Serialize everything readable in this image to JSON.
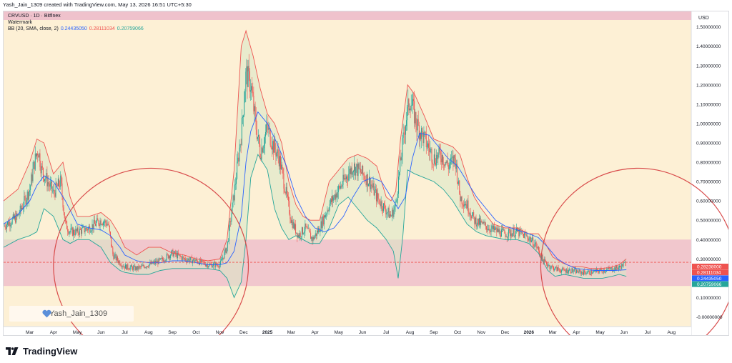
{
  "header": {
    "attribution": "Yash_Jain_1309 created with TradingView.com, May 13, 2026 16:51 UTC+5:30"
  },
  "legend": {
    "symbol": "CRVUSD · 1D · Bitfinex",
    "watermark": "Watermark",
    "bb_label": "BB (20, SMA, close, 2)",
    "bb_basis": "0.24435050",
    "bb_upper": "0.28111034",
    "bb_lower": "0.20759066"
  },
  "colors": {
    "background": "#fdf0d5",
    "zone_fill": "#efc2cc",
    "upper_band": "#ef5350",
    "lower_band": "#26a69a",
    "basis": "#2962ff",
    "band_fill": "#d9e8c7",
    "up_candle": "#26a69a",
    "down_candle": "#ef5350",
    "circle": "#d84a4a"
  },
  "price_axis": {
    "currency": "USD",
    "ticks": [
      "1.50000000",
      "1.40000000",
      "1.30000000",
      "1.20000000",
      "1.10000000",
      "1.00000000",
      "0.90000000",
      "0.80000000",
      "0.70000000",
      "0.60000000",
      "0.50000000",
      "0.40000000",
      "0.30000000",
      "0.10000000",
      "-0.00000000"
    ],
    "tags": [
      {
        "value": "0.28238000",
        "color": "#ef5350"
      },
      {
        "value": "0.28111034",
        "color": "#ef5350"
      },
      {
        "value": "0.24435050",
        "color": "#2962ff"
      },
      {
        "value": "0.20759066",
        "color": "#26a69a"
      }
    ]
  },
  "time_axis": {
    "labels": [
      "Mar",
      "Apr",
      "May",
      "Jun",
      "Jul",
      "Aug",
      "Sep",
      "Oct",
      "Nov",
      "Dec",
      "2025",
      "Mar",
      "Apr",
      "May",
      "Jun",
      "Jul",
      "Aug",
      "Sep",
      "Oct",
      "Nov",
      "Dec",
      "2026",
      "Mar",
      "Apr",
      "May",
      "Jun",
      "Jul",
      "Aug"
    ]
  },
  "watermark_text": "Yash_Jain_1309",
  "footer": {
    "logo_text": "TradingView"
  },
  "chart_data": {
    "type": "line",
    "title": "CRVUSD · 1D · Bitfinex",
    "ylabel": "USD",
    "ylim": [
      -0.05,
      1.58
    ],
    "x_unit": "month index (0 = Mar 2024)",
    "xlim": [
      -1.1,
      28.0
    ],
    "grid": false,
    "zones": [
      {
        "y_from": 0.16,
        "y_to": 0.4
      }
    ],
    "horizontal_line": 0.28238,
    "annotations": [
      {
        "type": "circle",
        "center": [
          5.1,
          0.265
        ],
        "radius_months": 4.1
      },
      {
        "type": "circle",
        "center": [
          25.6,
          0.265
        ],
        "radius_months": 4.1
      }
    ],
    "series": [
      {
        "role": "close",
        "x": [
          -1.1,
          -0.5,
          0.0,
          0.2,
          0.35,
          0.5,
          1.0,
          1.3,
          1.5,
          1.7,
          2.0,
          2.5,
          3.0,
          3.3,
          3.5,
          3.8,
          4.0,
          4.5,
          5.0,
          5.5,
          6.0,
          6.5,
          7.0,
          7.5,
          8.0,
          8.3,
          8.6,
          8.9,
          9.1,
          9.3,
          9.5,
          9.7,
          10.0,
          10.2,
          10.5,
          10.8,
          11.0,
          11.3,
          11.6,
          11.9,
          12.2,
          12.6,
          13.0,
          13.3,
          13.6,
          14.0,
          14.3,
          14.6,
          15.0,
          15.2,
          15.4,
          15.6,
          15.8,
          16.0,
          16.3,
          16.6,
          17.0,
          17.3,
          17.6,
          17.9,
          18.1,
          18.4,
          18.7,
          19.0,
          19.5,
          20.0,
          20.5,
          21.0,
          21.3,
          21.6,
          21.9,
          22.1,
          22.4,
          22.8,
          23.2,
          23.6,
          24.0,
          24.4,
          24.8,
          25.1
        ],
        "values": [
          0.47,
          0.52,
          0.66,
          0.8,
          0.87,
          0.76,
          0.64,
          0.7,
          0.48,
          0.44,
          0.44,
          0.46,
          0.5,
          0.48,
          0.32,
          0.28,
          0.26,
          0.25,
          0.27,
          0.29,
          0.33,
          0.3,
          0.29,
          0.27,
          0.27,
          0.36,
          0.64,
          0.95,
          1.26,
          1.2,
          1.0,
          0.85,
          0.98,
          0.9,
          0.82,
          0.63,
          0.5,
          0.42,
          0.46,
          0.4,
          0.46,
          0.58,
          0.66,
          0.72,
          0.78,
          0.74,
          0.7,
          0.62,
          0.55,
          0.52,
          0.58,
          0.8,
          1.0,
          1.13,
          0.99,
          0.92,
          0.82,
          0.84,
          0.78,
          0.82,
          0.62,
          0.58,
          0.5,
          0.48,
          0.45,
          0.43,
          0.44,
          0.41,
          0.37,
          0.29,
          0.26,
          0.25,
          0.24,
          0.24,
          0.23,
          0.23,
          0.24,
          0.245,
          0.255,
          0.28
        ]
      },
      {
        "role": "upper",
        "x": [
          -1.1,
          -0.5,
          0.0,
          0.3,
          0.6,
          1.0,
          1.4,
          1.7,
          2.0,
          2.5,
          3.0,
          3.4,
          3.7,
          4.0,
          4.5,
          5.0,
          5.5,
          6.0,
          6.5,
          7.0,
          7.5,
          8.0,
          8.3,
          8.6,
          8.9,
          9.1,
          9.4,
          9.7,
          10.0,
          10.3,
          10.6,
          10.9,
          11.2,
          11.5,
          11.8,
          12.2,
          12.6,
          13.0,
          13.4,
          13.8,
          14.2,
          14.6,
          15.0,
          15.2,
          15.4,
          15.6,
          15.9,
          16.2,
          16.6,
          17.0,
          17.4,
          17.8,
          18.1,
          18.4,
          18.7,
          19.0,
          19.5,
          20.0,
          20.5,
          21.0,
          21.4,
          21.7,
          22.0,
          22.4,
          22.8,
          23.2,
          23.6,
          24.0,
          24.4,
          24.8,
          25.1
        ],
        "values": [
          0.6,
          0.66,
          0.8,
          0.92,
          0.9,
          0.74,
          0.8,
          0.62,
          0.52,
          0.52,
          0.54,
          0.5,
          0.44,
          0.36,
          0.32,
          0.36,
          0.36,
          0.33,
          0.32,
          0.3,
          0.29,
          0.3,
          0.4,
          0.76,
          1.4,
          1.48,
          1.35,
          1.18,
          1.05,
          1.0,
          0.9,
          0.7,
          0.58,
          0.52,
          0.5,
          0.5,
          0.7,
          0.76,
          0.82,
          0.84,
          0.82,
          0.78,
          0.62,
          0.6,
          0.65,
          0.92,
          1.2,
          1.15,
          1.04,
          0.92,
          0.9,
          0.88,
          0.84,
          0.72,
          0.62,
          0.56,
          0.48,
          0.46,
          0.46,
          0.43,
          0.43,
          0.38,
          0.31,
          0.28,
          0.26,
          0.26,
          0.25,
          0.25,
          0.255,
          0.27,
          0.3
        ]
      },
      {
        "role": "basis",
        "x": [
          -1.1,
          -0.5,
          0.0,
          0.3,
          0.6,
          1.0,
          1.5,
          2.0,
          2.5,
          3.0,
          3.4,
          3.8,
          4.0,
          4.5,
          5.0,
          5.5,
          6.0,
          6.5,
          7.0,
          7.5,
          8.0,
          8.3,
          8.6,
          8.9,
          9.1,
          9.3,
          9.6,
          10.0,
          10.4,
          10.8,
          11.2,
          11.6,
          12.0,
          12.4,
          12.8,
          13.2,
          13.6,
          14.0,
          14.4,
          14.8,
          15.2,
          15.5,
          15.8,
          16.1,
          16.4,
          16.8,
          17.2,
          17.6,
          18.0,
          18.4,
          18.8,
          19.2,
          19.6,
          20.0,
          20.5,
          21.0,
          21.4,
          21.8,
          22.2,
          22.6,
          23.0,
          23.4,
          23.8,
          24.2,
          24.6,
          25.1
        ],
        "values": [
          0.48,
          0.53,
          0.6,
          0.68,
          0.73,
          0.7,
          0.6,
          0.48,
          0.46,
          0.45,
          0.42,
          0.36,
          0.32,
          0.29,
          0.28,
          0.28,
          0.29,
          0.29,
          0.28,
          0.27,
          0.27,
          0.28,
          0.34,
          0.52,
          0.8,
          0.96,
          1.06,
          1.0,
          0.9,
          0.78,
          0.62,
          0.52,
          0.46,
          0.44,
          0.46,
          0.52,
          0.62,
          0.7,
          0.72,
          0.7,
          0.62,
          0.56,
          0.62,
          0.82,
          0.95,
          0.94,
          0.88,
          0.82,
          0.78,
          0.7,
          0.62,
          0.56,
          0.5,
          0.47,
          0.45,
          0.43,
          0.41,
          0.36,
          0.3,
          0.27,
          0.25,
          0.245,
          0.24,
          0.24,
          0.24,
          0.244
        ]
      },
      {
        "role": "lower",
        "x": [
          -1.1,
          -0.5,
          0.0,
          0.3,
          0.6,
          1.0,
          1.4,
          1.7,
          2.0,
          2.5,
          3.0,
          3.4,
          3.8,
          4.0,
          4.5,
          5.0,
          5.5,
          6.0,
          6.5,
          7.0,
          7.5,
          8.0,
          8.3,
          8.6,
          8.9,
          9.1,
          9.3,
          9.6,
          10.0,
          10.3,
          10.6,
          10.9,
          11.2,
          11.5,
          11.8,
          12.2,
          12.6,
          13.0,
          13.4,
          13.8,
          14.2,
          14.6,
          15.0,
          15.3,
          15.5,
          15.7,
          15.9,
          16.2,
          16.6,
          17.0,
          17.4,
          17.8,
          18.1,
          18.4,
          18.8,
          19.2,
          19.6,
          20.0,
          20.5,
          21.0,
          21.4,
          21.8,
          22.1,
          22.5,
          22.9,
          23.3,
          23.7,
          24.1,
          24.5,
          24.8,
          25.1
        ],
        "values": [
          0.36,
          0.4,
          0.42,
          0.44,
          0.56,
          0.52,
          0.4,
          0.38,
          0.4,
          0.4,
          0.36,
          0.28,
          0.24,
          0.23,
          0.22,
          0.22,
          0.24,
          0.25,
          0.25,
          0.25,
          0.25,
          0.24,
          0.2,
          0.1,
          0.18,
          0.4,
          0.72,
          0.84,
          0.76,
          0.56,
          0.46,
          0.4,
          0.42,
          0.4,
          0.38,
          0.38,
          0.46,
          0.58,
          0.62,
          0.56,
          0.5,
          0.46,
          0.4,
          0.34,
          0.2,
          0.42,
          0.76,
          0.74,
          0.72,
          0.7,
          0.66,
          0.6,
          0.54,
          0.48,
          0.44,
          0.42,
          0.41,
          0.4,
          0.4,
          0.38,
          0.33,
          0.24,
          0.21,
          0.22,
          0.21,
          0.2,
          0.2,
          0.2,
          0.21,
          0.22,
          0.21
        ]
      }
    ]
  }
}
